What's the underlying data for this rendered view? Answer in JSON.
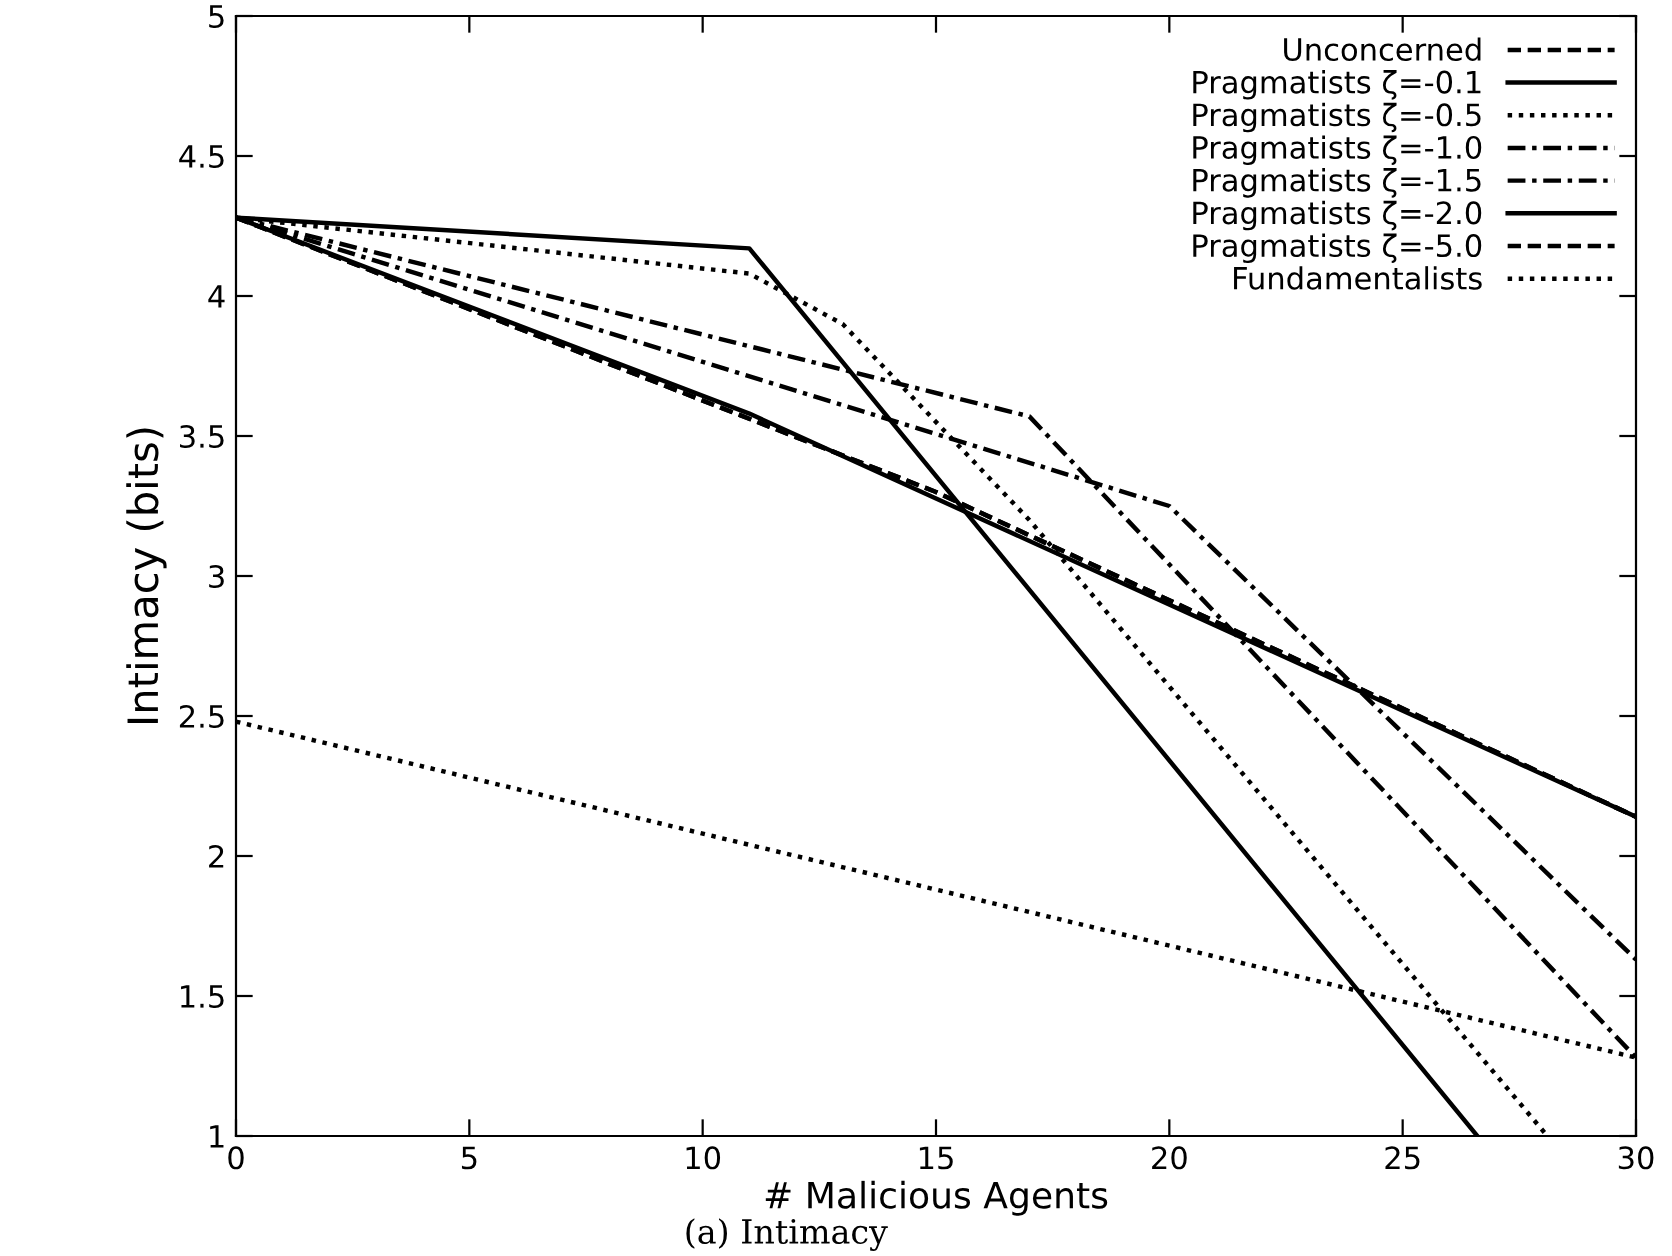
{
  "chart_data": {
    "type": "line",
    "xlabel": "# Malicious Agents",
    "ylabel": "Intimacy (bits)",
    "annotations": [
      "(a) Intimacy"
    ],
    "xlim": [
      0,
      30
    ],
    "ylim": [
      1,
      5
    ],
    "xticks": [
      0,
      5,
      10,
      15,
      20,
      25,
      30
    ],
    "yticks": [
      1,
      1.5,
      2,
      2.5,
      3,
      3.5,
      4,
      4.5,
      5
    ],
    "grid": false,
    "legend": "top right",
    "marker": "none",
    "series": [
      {
        "name": "Unconcerned",
        "color": "#000000",
        "line_style": "dashed",
        "x": [
          0,
          15,
          30
        ],
        "values": [
          4.28,
          3.3,
          2.14
        ]
      },
      {
        "name": "Pragmatists ζ=-0.1",
        "color": "#000000",
        "line_style": "solid",
        "x": [
          0,
          11,
          26.6
        ],
        "values": [
          4.28,
          4.17,
          1.0
        ]
      },
      {
        "name": "Pragmatists ζ=-0.5",
        "color": "#000000",
        "line_style": "dotted",
        "x": [
          0,
          11,
          13,
          17,
          28.1
        ],
        "values": [
          4.28,
          4.08,
          3.9,
          3.2,
          1.0
        ]
      },
      {
        "name": "Pragmatists ζ=-1.0",
        "color": "#000000",
        "line_style": "dashdot",
        "x": [
          0,
          17,
          30
        ],
        "values": [
          4.28,
          3.57,
          1.28
        ]
      },
      {
        "name": "Pragmatists ζ=-1.5",
        "color": "#000000",
        "line_style": "dashdot",
        "x": [
          0,
          20,
          30
        ],
        "values": [
          4.28,
          3.25,
          1.63
        ]
      },
      {
        "name": "Pragmatists ζ=-2.0",
        "color": "#000000",
        "line_style": "solid",
        "x": [
          0,
          11,
          30
        ],
        "values": [
          4.28,
          3.58,
          2.14
        ]
      },
      {
        "name": "Pragmatists ζ=-5.0",
        "color": "#000000",
        "line_style": "dashed",
        "x": [
          0,
          15,
          30
        ],
        "values": [
          4.28,
          3.3,
          2.14
        ]
      },
      {
        "name": "Fundamentalists",
        "color": "#000000",
        "line_style": "dotted",
        "x": [
          0,
          30
        ],
        "values": [
          2.48,
          1.28
        ]
      }
    ]
  }
}
